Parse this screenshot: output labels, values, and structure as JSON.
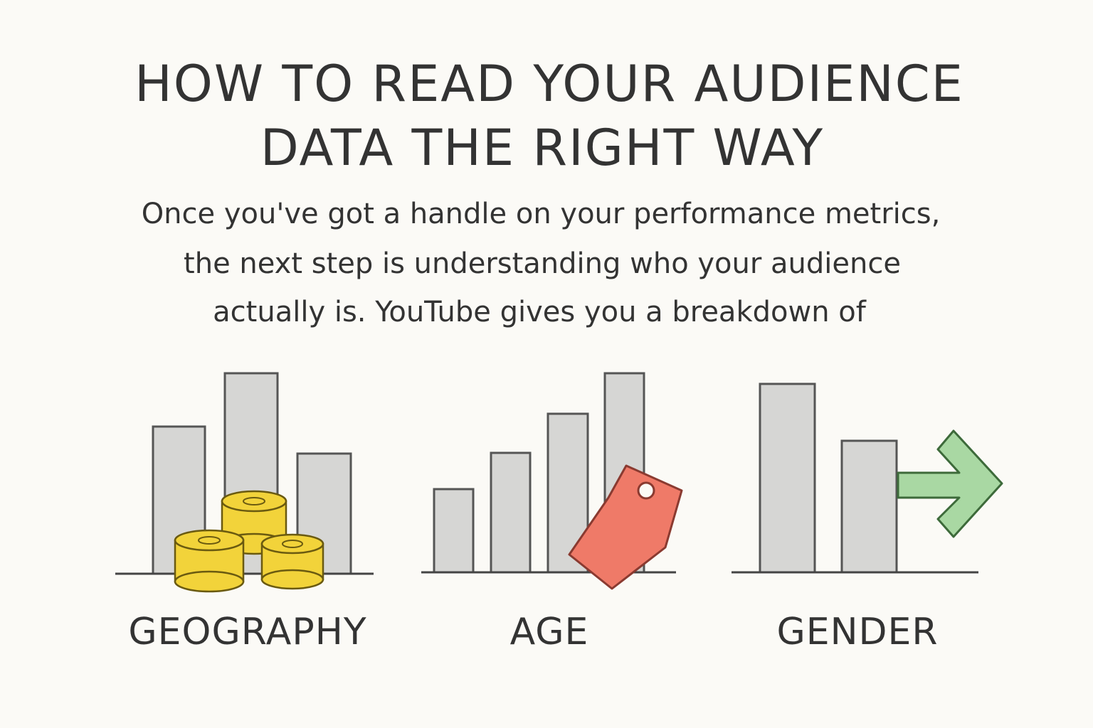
{
  "header": {
    "title_lines": [
      "HOW TO READ YOUR AUDIENCE",
      "DATA THE RIGHT WAY"
    ]
  },
  "body": {
    "lines": [
      "Once you've got a handle on your performance metrics,",
      "the next step is understanding who your audience",
      "actually is. YouTube gives you a breakdown of"
    ]
  },
  "panels": [
    {
      "label": "GEOGRAPHY"
    },
    {
      "label": "AGE"
    },
    {
      "label": "GENDER"
    }
  ]
}
